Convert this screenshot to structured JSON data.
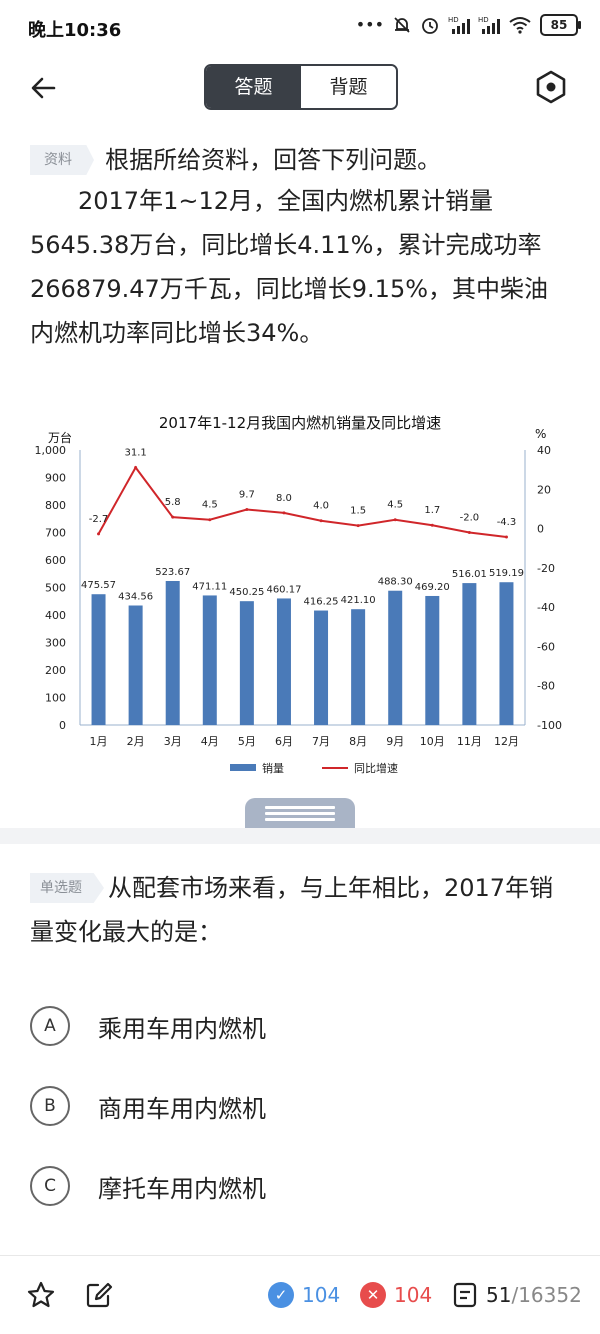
{
  "status_bar": {
    "time": "晚上10:36",
    "battery": "85",
    "icons": [
      "more-dots-icon",
      "mute-bell-icon",
      "alarm-icon",
      "hd-signal-icon",
      "hd-signal-icon",
      "wifi-icon",
      "battery-icon"
    ]
  },
  "nav": {
    "tab_answer": "答题",
    "tab_recite": "背题",
    "back_icon": "back-arrow-icon",
    "settings_icon": "settings-hexagon-icon"
  },
  "material": {
    "tag": "资料",
    "intro": "根据所给资料，回答下列问题。",
    "paragraph": "2017年1~12月，全国内燃机累计销量5645.38万台，同比增长4.11%，累计完成功率266879.47万千瓦，同比增长9.15%，其中柴油内燃机功率同比增长34%。"
  },
  "chart_data": {
    "type": "bar",
    "title": "2017年1-12月我国内燃机销量及同比增速",
    "ylabel_left": "万台",
    "ylabel_right": "%",
    "categories": [
      "1月",
      "2月",
      "3月",
      "4月",
      "5月",
      "6月",
      "7月",
      "8月",
      "9月",
      "10月",
      "11月",
      "12月"
    ],
    "series": [
      {
        "name": "销量",
        "type": "bar",
        "axis": "left",
        "values": [
          475.57,
          434.56,
          523.67,
          471.11,
          450.25,
          460.17,
          416.25,
          421.1,
          488.3,
          469.2,
          516.01,
          519.19
        ],
        "labels": [
          "475.57",
          "434.56",
          "523.67",
          "471.11",
          "450.25",
          "460.17",
          "416.25",
          "421.10",
          "488.30",
          "469.20",
          "516.01",
          "519.19"
        ],
        "color": "#4a7ab8"
      },
      {
        "name": "同比增速",
        "type": "line",
        "axis": "right",
        "values": [
          -2.7,
          31.1,
          5.8,
          4.5,
          9.7,
          8.0,
          4.0,
          1.5,
          4.5,
          1.7,
          -2.0,
          -4.3
        ],
        "labels": [
          "-2.7",
          "31.1",
          "5.8",
          "4.5",
          "9.7",
          "8.0",
          "4.0",
          "1.5",
          "4.5",
          "1.7",
          "-2.0",
          "-4.3"
        ],
        "color": "#d0262a"
      }
    ],
    "ylim_left": [
      0,
      1000
    ],
    "yticks_left": [
      "0",
      "100",
      "200",
      "300",
      "400",
      "500",
      "600",
      "700",
      "800",
      "900",
      "1,000"
    ],
    "ylim_right": [
      -100,
      40
    ],
    "yticks_right": [
      "-100",
      "-80",
      "-60",
      "-40",
      "-20",
      "0",
      "20",
      "40"
    ],
    "grid": false,
    "legend": "bottom"
  },
  "question": {
    "tag": "单选题",
    "text": "从配套市场来看，与上年相比，2017年销量变化最大的是："
  },
  "options": [
    {
      "letter": "A",
      "text": "乘用车用内燃机"
    },
    {
      "letter": "B",
      "text": "商用车用内燃机"
    },
    {
      "letter": "C",
      "text": "摩托车用内燃机"
    }
  ],
  "bottom": {
    "correct": "104",
    "wrong": "104",
    "progress_current": "51",
    "progress_total": "/16352",
    "colors": {
      "correct": "#4a90e2",
      "wrong": "#e74c4c"
    }
  }
}
